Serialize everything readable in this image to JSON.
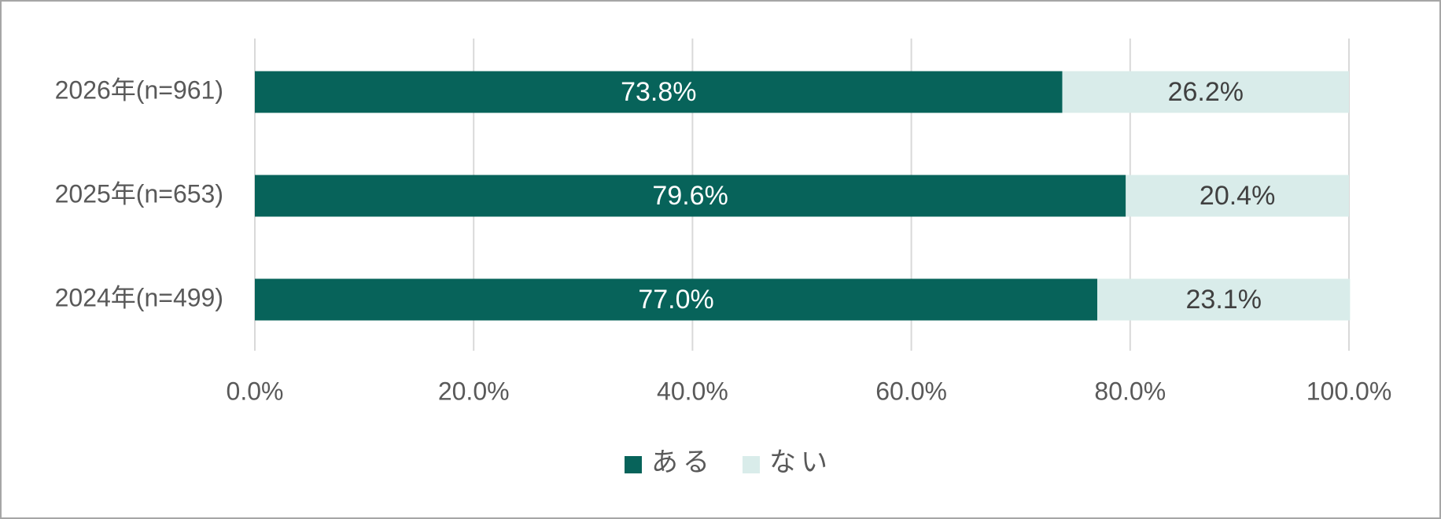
{
  "chart_data": {
    "type": "stacked-barh",
    "categories": [
      "2026年(n=961)",
      "2025年(n=653)",
      "2024年(n=499)"
    ],
    "series": [
      {
        "name": "ある",
        "color": "#07635a",
        "values": [
          73.8,
          79.6,
          77.0
        ],
        "value_labels": [
          "73.8%",
          "79.6%",
          "77.0%"
        ],
        "label_color": "#ffffff"
      },
      {
        "name": "ない",
        "color": "#d9ecea",
        "values": [
          26.2,
          20.4,
          23.1
        ],
        "value_labels": [
          "26.2%",
          "20.4%",
          "23.1%"
        ],
        "label_color": "#404040"
      }
    ],
    "xlim": [
      0,
      100
    ],
    "xticks": [
      {
        "value": 0,
        "label": "0.0%"
      },
      {
        "value": 20,
        "label": "20.0%"
      },
      {
        "value": 40,
        "label": "40.0%"
      },
      {
        "value": 60,
        "label": "60.0%"
      },
      {
        "value": 80,
        "label": "80.0%"
      },
      {
        "value": 100,
        "label": "100.0%"
      }
    ],
    "grid": true,
    "legend": "bottom"
  }
}
